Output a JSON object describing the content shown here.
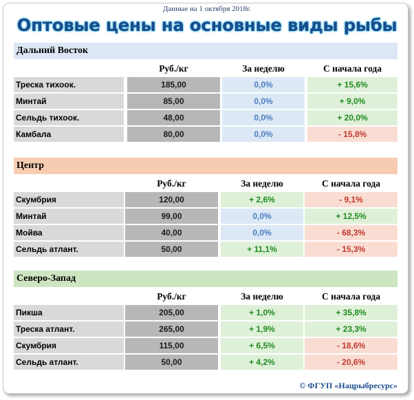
{
  "header": {
    "date": "Данные на 1 октября 2018г.",
    "title": "Оптовые цены на основные виды рыбы"
  },
  "columns": {
    "price": "Руб./кг",
    "week": "За неделю",
    "year": "С начала года"
  },
  "sections": [
    {
      "name": "Дальний Восток",
      "color": "#dde6f4",
      "rows": [
        {
          "name": "Треска тихоок.",
          "price": "185,00",
          "week": "0,0%",
          "week_trend": "blue",
          "year": "+ 15,6%",
          "year_trend": "green"
        },
        {
          "name": "Минтай",
          "price": "85,00",
          "week": "0,0%",
          "week_trend": "blue",
          "year": "+ 9,0%",
          "year_trend": "green"
        },
        {
          "name": "Сельдь тихоок.",
          "price": "48,00",
          "week": "0,0%",
          "week_trend": "blue",
          "year": "+ 20,0%",
          "year_trend": "green"
        },
        {
          "name": "Камбала",
          "price": "80,00",
          "week": "0,0%",
          "week_trend": "blue",
          "year": "- 15,8%",
          "year_trend": "red"
        }
      ]
    },
    {
      "name": "Центр",
      "color": "#f7cdb2",
      "rows": [
        {
          "name": "Скумбрия",
          "price": "120,00",
          "week": "+ 2,6%",
          "week_trend": "green",
          "year": "- 9,1%",
          "year_trend": "red"
        },
        {
          "name": "Минтай",
          "price": "99,00",
          "week": "0,0%",
          "week_trend": "blue",
          "year": "+ 12,5%",
          "year_trend": "green"
        },
        {
          "name": "Мойва",
          "price": "40,00",
          "week": "0,0%",
          "week_trend": "blue",
          "year": "- 68,3%",
          "year_trend": "red"
        },
        {
          "name": "Сельдь атлант.",
          "price": "50,00",
          "week": "+ 11,1%",
          "week_trend": "green",
          "year": "- 15,3%",
          "year_trend": "red"
        }
      ]
    },
    {
      "name": "Северо-Запад",
      "color": "#cde5c0",
      "rows": [
        {
          "name": "Пикша",
          "price": "205,00",
          "week": "+ 1,0%",
          "week_trend": "green",
          "year": "+ 35,8%",
          "year_trend": "green"
        },
        {
          "name": "Треска атлант.",
          "price": "265,00",
          "week": "+ 1,9%",
          "week_trend": "green",
          "year": "+ 23,3%",
          "year_trend": "green"
        },
        {
          "name": "Скумбрия",
          "price": "115,00",
          "week": "+ 6,5%",
          "week_trend": "green",
          "year": "- 18,6%",
          "year_trend": "red"
        },
        {
          "name": "Сельдь атлант.",
          "price": "50,00",
          "week": "+ 4,2%",
          "week_trend": "green",
          "year": "- 20,6%",
          "year_trend": "red"
        }
      ]
    }
  ],
  "footer": "© ФГУП «Нацрыбресурс»"
}
